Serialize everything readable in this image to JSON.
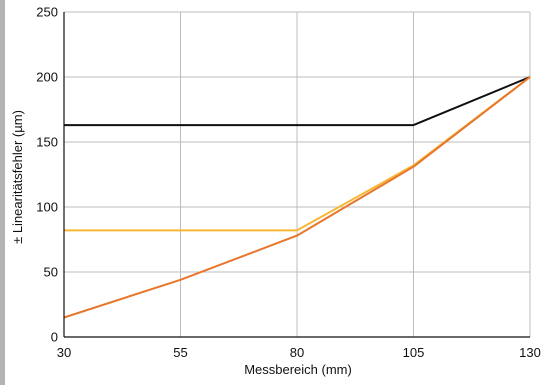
{
  "chart_data": {
    "type": "line",
    "title": "",
    "xlabel": "Messbereich (mm)",
    "ylabel": "± Linearitätsfehler (µm)",
    "x": [
      30,
      55,
      80,
      105,
      130
    ],
    "xlim": [
      30,
      130
    ],
    "ylim": [
      0,
      250
    ],
    "x_ticks": [
      "30",
      "55",
      "80",
      "105",
      "130"
    ],
    "y_ticks": [
      "0",
      "50",
      "100",
      "150",
      "200",
      "250"
    ],
    "grid": true,
    "legend": "none",
    "series": [
      {
        "color": "#111111",
        "points": [
          [
            30,
            163
          ],
          [
            55,
            163
          ],
          [
            80,
            163
          ],
          [
            105,
            163
          ],
          [
            130,
            200
          ]
        ]
      },
      {
        "color": "#f7b733",
        "points": [
          [
            30,
            82
          ],
          [
            55,
            82
          ],
          [
            80,
            82
          ],
          [
            105,
            132
          ],
          [
            130,
            200
          ]
        ]
      },
      {
        "color": "#e8762c",
        "points": [
          [
            30,
            15
          ],
          [
            55,
            44
          ],
          [
            80,
            78
          ],
          [
            105,
            131
          ],
          [
            130,
            200
          ]
        ]
      }
    ]
  }
}
